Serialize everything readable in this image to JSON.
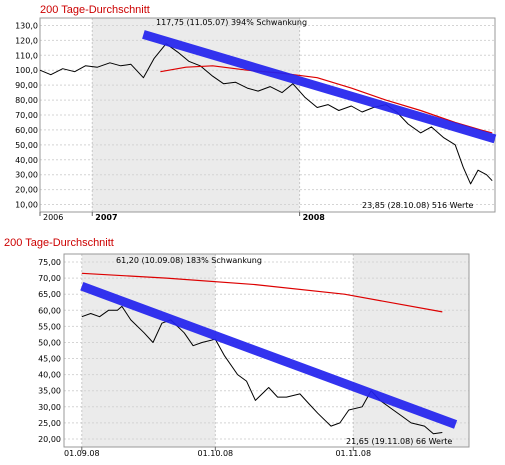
{
  "chart_data": [
    {
      "type": "line",
      "title": "200 Tage-Durchschnitt",
      "top_annotation": "117,75  (11.05.07)  394% Schwankung",
      "bottom_annotation": "23,85  (28.10.08)  516 Werte",
      "ylim": [
        5,
        135
      ],
      "yticks": [
        "130,0",
        "120,0",
        "110,0",
        "100,0",
        "90,00",
        "80,00",
        "70,00",
        "60,00",
        "50,00",
        "40,00",
        "30,00",
        "20,00",
        "10,00"
      ],
      "xlim": [
        "2006-10-01",
        "2008-12-10"
      ],
      "xticks": [
        {
          "label": "2006",
          "date": "2006-10-01",
          "bold": false
        },
        {
          "label": "2007",
          "date": "2007-01-01",
          "bold": true
        },
        {
          "label": "2008",
          "date": "2008-01-01",
          "bold": true
        }
      ],
      "shaded_range": [
        "2007-01-01",
        "2008-01-01"
      ],
      "grid": true,
      "series": [
        {
          "role": "price",
          "color": "#000000",
          "x": [
            "2006-10-01",
            "2006-10-20",
            "2006-11-10",
            "2006-12-01",
            "2006-12-20",
            "2007-01-10",
            "2007-02-01",
            "2007-02-20",
            "2007-03-10",
            "2007-04-01",
            "2007-04-20",
            "2007-05-11",
            "2007-06-01",
            "2007-06-20",
            "2007-07-10",
            "2007-08-01",
            "2007-08-20",
            "2007-09-10",
            "2007-10-01",
            "2007-10-20",
            "2007-11-10",
            "2007-12-01",
            "2007-12-20",
            "2008-01-10",
            "2008-02-01",
            "2008-02-20",
            "2008-03-10",
            "2008-04-01",
            "2008-04-20",
            "2008-05-10",
            "2008-06-01",
            "2008-06-20",
            "2008-07-10",
            "2008-08-01",
            "2008-08-20",
            "2008-09-10",
            "2008-10-01",
            "2008-10-15",
            "2008-10-28",
            "2008-11-10",
            "2008-11-25",
            "2008-12-05"
          ],
          "values": [
            100,
            97,
            101,
            99,
            103,
            102,
            105,
            103,
            104,
            95,
            108,
            117.75,
            112,
            106,
            103,
            96,
            91,
            92,
            88,
            86,
            89,
            85,
            91,
            82,
            75,
            77,
            73,
            76,
            72,
            75,
            77,
            72,
            64,
            58,
            62,
            55,
            50,
            35,
            23.85,
            33,
            30,
            26
          ]
        },
        {
          "role": "sma200",
          "color": "#dd0000",
          "x": [
            "2007-05-01",
            "2007-06-15",
            "2007-08-01",
            "2007-10-01",
            "2007-12-01",
            "2008-02-01",
            "2008-04-01",
            "2008-06-01",
            "2008-08-01",
            "2008-10-01",
            "2008-11-15",
            "2008-12-05"
          ],
          "values": [
            99,
            102,
            103,
            100,
            98,
            95,
            88,
            80,
            73,
            65,
            60,
            58
          ]
        },
        {
          "role": "trendline",
          "color": "#2222ee",
          "x": [
            "2007-04-01",
            "2008-12-10"
          ],
          "values": [
            124,
            54
          ]
        }
      ]
    },
    {
      "type": "line",
      "title": "200 Tage-Durchschnitt",
      "top_annotation": "61,20  (10.09.08)  183% Schwankung",
      "bottom_annotation": "21,65  (19.11.08)  66 Werte",
      "ylim": [
        17.5,
        77.5
      ],
      "yticks": [
        "75,00",
        "70,00",
        "65,00",
        "60,00",
        "55,00",
        "50,00",
        "45,00",
        "40,00",
        "35,00",
        "30,00",
        "25,00",
        "20,00"
      ],
      "xlim": [
        "2008-08-28",
        "2008-11-27"
      ],
      "xticks": [
        {
          "label": "01.09.08",
          "date": "2008-09-01"
        },
        {
          "label": "01.10.08",
          "date": "2008-10-01"
        },
        {
          "label": "01.11.08",
          "date": "2008-11-01"
        }
      ],
      "shaded_ranges": [
        [
          "2008-09-01",
          "2008-10-01"
        ],
        [
          "2008-11-01",
          "2008-11-27"
        ]
      ],
      "grid": true,
      "series": [
        {
          "role": "price",
          "color": "#000000",
          "x": [
            "2008-09-01",
            "2008-09-03",
            "2008-09-05",
            "2008-09-07",
            "2008-09-09",
            "2008-09-10",
            "2008-09-12",
            "2008-09-15",
            "2008-09-17",
            "2008-09-19",
            "2008-09-21",
            "2008-09-24",
            "2008-09-26",
            "2008-09-28",
            "2008-10-01",
            "2008-10-03",
            "2008-10-06",
            "2008-10-08",
            "2008-10-10",
            "2008-10-13",
            "2008-10-15",
            "2008-10-17",
            "2008-10-20",
            "2008-10-22",
            "2008-10-24",
            "2008-10-27",
            "2008-10-29",
            "2008-10-31",
            "2008-11-03",
            "2008-11-05",
            "2008-11-07",
            "2008-11-10",
            "2008-11-12",
            "2008-11-14",
            "2008-11-17",
            "2008-11-19",
            "2008-11-21"
          ],
          "values": [
            58,
            59,
            58,
            60,
            60,
            61.2,
            57,
            53,
            50,
            56,
            57,
            53,
            49,
            50,
            51,
            46,
            40,
            38,
            32,
            36,
            33,
            33,
            34,
            31,
            28,
            24,
            25,
            29,
            30,
            35,
            32,
            29,
            27,
            25,
            24,
            21.65,
            22
          ]
        },
        {
          "role": "sma200",
          "color": "#dd0000",
          "x": [
            "2008-09-01",
            "2008-09-20",
            "2008-10-10",
            "2008-10-30",
            "2008-11-21"
          ],
          "values": [
            71.5,
            70,
            68,
            65,
            59.5
          ]
        },
        {
          "role": "trendline",
          "color": "#2222ee",
          "x": [
            "2008-09-01",
            "2008-11-24"
          ],
          "values": [
            67.5,
            24.5
          ]
        }
      ]
    }
  ]
}
